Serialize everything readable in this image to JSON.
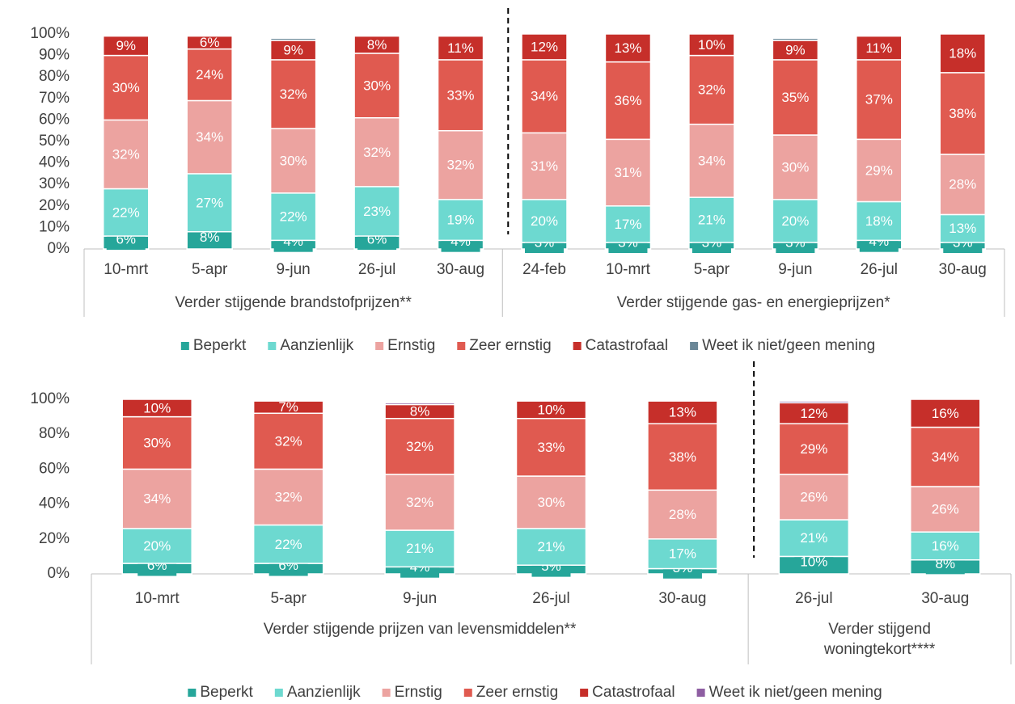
{
  "chart_data": [
    {
      "type": "stacked_bar",
      "groups": [
        {
          "label": "Verder stijgende brandstofprijzen**",
          "categories": [
            "10-mrt",
            "5-apr",
            "9-jun",
            "26-jul",
            "30-aug"
          ]
        },
        {
          "label": "Verder stijgende gas- en energieprijzen*",
          "categories": [
            "24-feb",
            "10-mrt",
            "5-apr",
            "9-jun",
            "26-jul",
            "30-aug"
          ]
        }
      ],
      "series": [
        {
          "name": "Beperkt",
          "color": "#26a69a",
          "values": [
            6,
            8,
            4,
            6,
            4,
            3,
            3,
            3,
            3,
            4,
            3
          ],
          "value_labels": [
            "6%",
            "8%",
            "4%",
            "6%",
            "4%",
            "3%",
            "3%",
            "3%",
            "3%",
            "4%",
            "3%"
          ]
        },
        {
          "name": "Aanzienlijk",
          "color": "#6dd9d0",
          "values": [
            22,
            27,
            22,
            23,
            19,
            20,
            17,
            21,
            20,
            18,
            13
          ],
          "value_labels": [
            "22%",
            "27%",
            "22%",
            "23%",
            "19%",
            "20%",
            "17%",
            "21%",
            "20%",
            "18%",
            "13%"
          ]
        },
        {
          "name": "Ernstig",
          "color": "#eca3a0",
          "values": [
            32,
            34,
            30,
            32,
            32,
            31,
            31,
            34,
            30,
            29,
            28
          ],
          "value_labels": [
            "32%",
            "34%",
            "30%",
            "32%",
            "32%",
            "31%",
            "31%",
            "34%",
            "30%",
            "29%",
            "28%"
          ]
        },
        {
          "name": "Zeer ernstig",
          "color": "#e05a50",
          "values": [
            30,
            24,
            32,
            30,
            33,
            34,
            36,
            32,
            35,
            37,
            38
          ],
          "value_labels": [
            "30%",
            "24%",
            "32%",
            "30%",
            "33%",
            "34%",
            "36%",
            "32%",
            "35%",
            "37%",
            "38%"
          ]
        },
        {
          "name": "Catastrofaal",
          "color": "#c62f2a",
          "values": [
            9,
            6,
            9,
            8,
            11,
            12,
            13,
            10,
            9,
            11,
            18
          ],
          "value_labels": [
            "9%",
            "6%",
            "9%",
            "8%",
            "11%",
            "12%",
            "13%",
            "10%",
            "9%",
            "11%",
            "18%"
          ]
        },
        {
          "name": "Weet ik niet/geen mening",
          "color": "#6a8797",
          "values": [
            0,
            0,
            1,
            0,
            0,
            0,
            0,
            0,
            1,
            0,
            0
          ]
        }
      ],
      "ylim": [
        0,
        100
      ],
      "yticks": [
        {
          "value": 0,
          "label": "0%"
        },
        {
          "value": 10,
          "label": "10%"
        },
        {
          "value": 20,
          "label": "20%"
        },
        {
          "value": 30,
          "label": "30%"
        },
        {
          "value": 40,
          "label": "40%"
        },
        {
          "value": 50,
          "label": "50%"
        },
        {
          "value": 60,
          "label": "60%"
        },
        {
          "value": 70,
          "label": "70%"
        },
        {
          "value": 80,
          "label": "80%"
        },
        {
          "value": 90,
          "label": "90%"
        },
        {
          "value": 100,
          "label": "100%"
        }
      ]
    },
    {
      "type": "stacked_bar",
      "groups": [
        {
          "label": "Verder stijgende prijzen van levensmiddelen**",
          "categories": [
            "10-mrt",
            "5-apr",
            "9-jun",
            "26-jul",
            "30-aug"
          ]
        },
        {
          "label": "Verder stijgend woningtekort****",
          "categories": [
            "26-jul",
            "30-aug"
          ]
        }
      ],
      "series": [
        {
          "name": "Beperkt",
          "color": "#26a69a",
          "values": [
            6,
            6,
            4,
            5,
            3,
            10,
            8
          ],
          "value_labels": [
            "6%",
            "6%",
            "4%",
            "5%",
            "3%",
            "10%",
            "8%"
          ]
        },
        {
          "name": "Aanzienlijk",
          "color": "#6dd9d0",
          "values": [
            20,
            22,
            21,
            21,
            17,
            21,
            16
          ],
          "value_labels": [
            "20%",
            "22%",
            "21%",
            "21%",
            "17%",
            "21%",
            "16%"
          ]
        },
        {
          "name": "Ernstig",
          "color": "#eca3a0",
          "values": [
            34,
            32,
            32,
            30,
            28,
            26,
            26
          ],
          "value_labels": [
            "34%",
            "32%",
            "32%",
            "30%",
            "28%",
            "26%",
            "26%"
          ]
        },
        {
          "name": "Zeer ernstig",
          "color": "#e05a50",
          "values": [
            30,
            32,
            32,
            33,
            38,
            29,
            34
          ],
          "value_labels": [
            "30%",
            "32%",
            "32%",
            "33%",
            "38%",
            "29%",
            "34%"
          ]
        },
        {
          "name": "Catastrofaal",
          "color": "#c62f2a",
          "values": [
            10,
            7,
            8,
            10,
            13,
            12,
            16
          ],
          "value_labels": [
            "10%",
            "7%",
            "8%",
            "10%",
            "13%",
            "12%",
            "16%"
          ]
        },
        {
          "name": "Weet ik niet/geen mening",
          "color": "#8e5ea2",
          "values": [
            0,
            0,
            1,
            0,
            0,
            1,
            0
          ]
        }
      ],
      "ylim": [
        0,
        100
      ],
      "yticks": [
        {
          "value": 0,
          "label": "0%"
        },
        {
          "value": 20,
          "label": "20%"
        },
        {
          "value": 40,
          "label": "40%"
        },
        {
          "value": 60,
          "label": "60%"
        },
        {
          "value": 80,
          "label": "80%"
        },
        {
          "value": 100,
          "label": "100%"
        }
      ]
    }
  ]
}
